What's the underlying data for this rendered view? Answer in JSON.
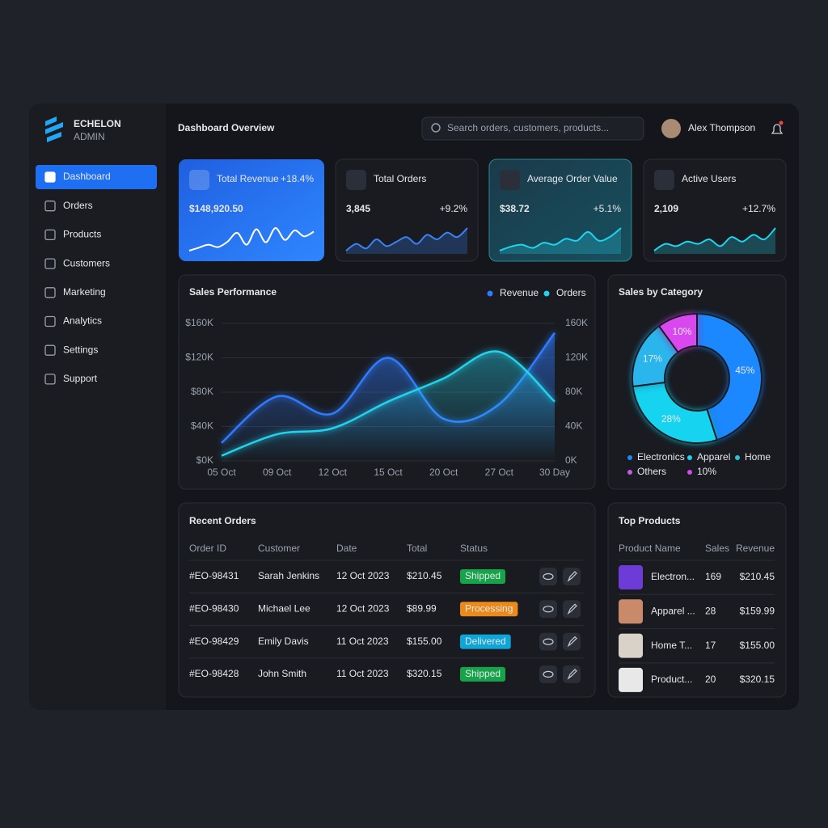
{
  "sidebar": {
    "brand_line1": "ECHELON",
    "brand_line2": "ADMIN",
    "nav": [
      "Dashboard",
      "Orders",
      "Products",
      "Customers",
      "Marketing",
      "Analytics",
      "Settings",
      "Support"
    ],
    "active": 0
  },
  "header": {
    "title": "Dashboard Overview",
    "search_placeholder": "Search orders, customers, products...",
    "user_name": "Alex Thompson"
  },
  "kpis": [
    {
      "label": "Total Revenue",
      "value": "$148,920.50",
      "change": "+18.4%",
      "color": "#ffffff",
      "trend": [
        30,
        35,
        40,
        36,
        45,
        60,
        40,
        66,
        44,
        68,
        48,
        64,
        54,
        62
      ]
    },
    {
      "label": "Total Orders",
      "value": "3,845",
      "change": "+9.2%",
      "color": "#3b82f6",
      "trend": [
        20,
        35,
        25,
        45,
        30,
        40,
        50,
        35,
        55,
        45,
        60,
        50,
        70
      ]
    },
    {
      "label": "Average Order Value",
      "value": "$38.72",
      "change": "+5.1%",
      "color": "#22d3ee",
      "trend": [
        15,
        25,
        30,
        22,
        35,
        30,
        45,
        40,
        62,
        40,
        50,
        72
      ]
    },
    {
      "label": "Active Users",
      "value": "2,109",
      "change": "+12.7%",
      "color": "#22d3ee",
      "trend": [
        20,
        35,
        30,
        40,
        35,
        45,
        30,
        50,
        40,
        55,
        45,
        70
      ]
    }
  ],
  "sales_performance": {
    "type": "line",
    "title": "Sales Performance",
    "categories": [
      "05 Oct",
      "09 Oct",
      "12 Oct",
      "15 Oct",
      "20 Oct",
      "27 Oct",
      "30 Day"
    ],
    "series": [
      {
        "name": "Revenue",
        "color": "#2f7bff",
        "values": [
          21000,
          75000,
          55000,
          120000,
          49000,
          66000,
          149000
        ]
      },
      {
        "name": "Orders",
        "color": "#22d3ee",
        "axis": "y2",
        "values": [
          6000,
          31000,
          38000,
          69000,
          96000,
          127000,
          69000
        ]
      }
    ],
    "ylim": [
      0,
      160000
    ],
    "yticks": [
      {
        "value": 0,
        "label": "$0K"
      },
      {
        "value": 40000,
        "label": "$40K"
      },
      {
        "value": 80000,
        "label": "$80K"
      },
      {
        "value": 120000,
        "label": "$120K"
      },
      {
        "value": 160000,
        "label": "$160K"
      }
    ],
    "y2lim": [
      0,
      160000
    ],
    "y2ticks": [
      {
        "value": 0,
        "label": "0K"
      },
      {
        "value": 40000,
        "label": "40K"
      },
      {
        "value": 80000,
        "label": "80K"
      },
      {
        "value": 120000,
        "label": "120K"
      },
      {
        "value": 160000,
        "label": "160K"
      }
    ],
    "grid": true
  },
  "sales_by_category": {
    "type": "pie",
    "title": "Sales by Category",
    "categories": [
      "Electronics",
      "Apparel",
      "Home",
      "Others"
    ],
    "values": [
      45,
      28,
      17,
      10
    ],
    "value_labels": [
      "45%",
      "28%",
      "17%",
      "10%"
    ],
    "colors": [
      "#1e88ff",
      "#19d3f0",
      "#2bb5ec",
      "#d946ef"
    ],
    "legend_colors": [
      "#1e88ff",
      "#19d3f0",
      "#22c7d8",
      "#c45ce6"
    ],
    "extra_legend": {
      "label": "10%",
      "color": "#d946ef"
    }
  },
  "recent_orders": {
    "title": "Recent Orders",
    "columns": [
      "Order ID",
      "Customer",
      "Date",
      "Total",
      "Status"
    ],
    "rows": [
      [
        "#EO-98431",
        "Sarah Jenkins",
        "12 Oct 2023",
        "$210.45",
        "Shipped"
      ],
      [
        "#EO-98430",
        "Michael Lee",
        "12 Oct 2023",
        "$89.99",
        "Processing"
      ],
      [
        "#EO-98429",
        "Emily Davis",
        "11 Oct 2023",
        "$155.00",
        "Delivered"
      ],
      [
        "#EO-98428",
        "John Smith",
        "11 Oct 2023",
        "$320.15",
        "Shipped"
      ]
    ],
    "status_colors": [
      "#16a34a",
      "#ea8a1a",
      "#0ea5d9",
      "#16a34a"
    ]
  },
  "top_products": {
    "title": "Top Products",
    "columns": [
      "Product Name",
      "Sales",
      "Revenue"
    ],
    "rows": [
      [
        "Electron...",
        169,
        "$210.45"
      ],
      [
        "Apparel ...",
        28,
        "$159.99"
      ],
      [
        "Home T...",
        17,
        "$155.00"
      ],
      [
        "Product...",
        20,
        "$320.15"
      ]
    ],
    "thumb_colors": [
      "#6d3bd8",
      "#c98a6a",
      "#d8d2c8",
      "#e8e8e8"
    ]
  }
}
